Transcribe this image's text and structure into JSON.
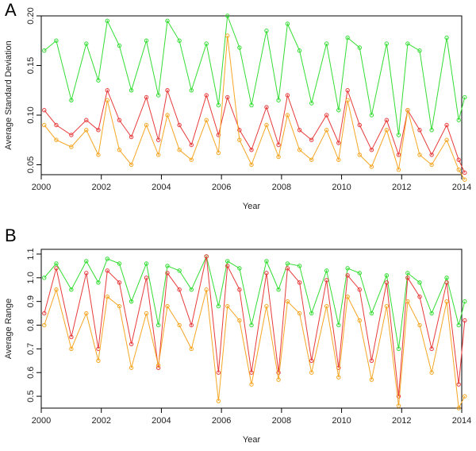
{
  "chart_data": [
    {
      "panel_label": "A",
      "type": "line",
      "xlabel": "Year",
      "ylabel": "Average Standard Deviation",
      "xlim": [
        2000,
        2014
      ],
      "ylim": [
        0.04,
        0.2
      ],
      "xticks": [
        "2000",
        "2002",
        "2004",
        "2006",
        "2008",
        "2010",
        "2012",
        "2014"
      ],
      "yticks": [
        "0.05",
        "0.10",
        "0.15",
        "0.20"
      ],
      "grid": false,
      "legend": "none",
      "x": [
        2000.1,
        2000.5,
        2001.0,
        2001.5,
        2001.9,
        2002.2,
        2002.6,
        2003.0,
        2003.5,
        2003.9,
        2004.2,
        2004.6,
        2005.0,
        2005.5,
        2005.9,
        2006.2,
        2006.6,
        2007.0,
        2007.5,
        2007.9,
        2008.2,
        2008.6,
        2009.0,
        2009.5,
        2009.9,
        2010.2,
        2010.6,
        2011.0,
        2011.5,
        2011.9,
        2012.2,
        2012.6,
        2013.0,
        2013.5,
        2013.9,
        2014.1
      ],
      "series": [
        {
          "color": "#33dd33",
          "values": [
            0.165,
            0.175,
            0.115,
            0.172,
            0.135,
            0.195,
            0.17,
            0.125,
            0.175,
            0.12,
            0.195,
            0.175,
            0.125,
            0.172,
            0.11,
            0.2,
            0.168,
            0.11,
            0.185,
            0.115,
            0.192,
            0.165,
            0.112,
            0.172,
            0.105,
            0.178,
            0.168,
            0.1,
            0.172,
            0.08,
            0.172,
            0.165,
            0.085,
            0.178,
            0.095,
            0.118
          ]
        },
        {
          "color": "#e83a3a",
          "values": [
            0.105,
            0.09,
            0.08,
            0.095,
            0.085,
            0.125,
            0.095,
            0.078,
            0.118,
            0.075,
            0.125,
            0.09,
            0.07,
            0.12,
            0.08,
            0.118,
            0.085,
            0.065,
            0.108,
            0.07,
            0.12,
            0.085,
            0.075,
            0.1,
            0.072,
            0.125,
            0.09,
            0.065,
            0.095,
            0.06,
            0.105,
            0.085,
            0.06,
            0.09,
            0.055,
            0.042
          ]
        },
        {
          "color": "#f5a623",
          "values": [
            0.09,
            0.075,
            0.068,
            0.085,
            0.06,
            0.115,
            0.065,
            0.05,
            0.09,
            0.06,
            0.1,
            0.065,
            0.055,
            0.095,
            0.062,
            0.18,
            0.075,
            0.05,
            0.09,
            0.058,
            0.1,
            0.065,
            0.055,
            0.085,
            0.055,
            0.115,
            0.06,
            0.048,
            0.085,
            0.045,
            0.105,
            0.06,
            0.05,
            0.075,
            0.045,
            0.035
          ]
        }
      ]
    },
    {
      "panel_label": "B",
      "type": "line",
      "xlabel": "Year",
      "ylabel": "Average Range",
      "xlim": [
        2000,
        2014
      ],
      "ylim": [
        0.45,
        1.12
      ],
      "xticks": [
        "2000",
        "2002",
        "2004",
        "2006",
        "2008",
        "2010",
        "2012",
        "2014"
      ],
      "yticks": [
        "0.5",
        "0.6",
        "0.7",
        "0.8",
        "0.9",
        "1.0",
        "1.1"
      ],
      "grid": false,
      "legend": "none",
      "x": [
        2000.1,
        2000.5,
        2001.0,
        2001.5,
        2001.9,
        2002.2,
        2002.6,
        2003.0,
        2003.5,
        2003.9,
        2004.2,
        2004.6,
        2005.0,
        2005.5,
        2005.9,
        2006.2,
        2006.6,
        2007.0,
        2007.5,
        2007.9,
        2008.2,
        2008.6,
        2009.0,
        2009.5,
        2009.9,
        2010.2,
        2010.6,
        2011.0,
        2011.5,
        2011.9,
        2012.2,
        2012.6,
        2013.0,
        2013.5,
        2013.9,
        2014.1
      ],
      "series": [
        {
          "color": "#33dd33",
          "values": [
            1.0,
            1.06,
            0.95,
            1.07,
            0.98,
            1.08,
            1.06,
            0.9,
            1.06,
            0.8,
            1.05,
            1.03,
            0.95,
            1.09,
            0.88,
            1.07,
            1.04,
            0.8,
            1.07,
            0.95,
            1.06,
            1.05,
            0.85,
            1.03,
            0.8,
            1.04,
            1.02,
            0.85,
            1.01,
            0.7,
            1.02,
            0.98,
            0.85,
            1.0,
            0.8,
            0.9
          ]
        },
        {
          "color": "#e83a3a",
          "values": [
            0.85,
            1.04,
            0.75,
            1.02,
            0.7,
            1.03,
            0.98,
            0.72,
            1.0,
            0.62,
            1.02,
            0.95,
            0.8,
            1.09,
            0.6,
            1.05,
            0.95,
            0.6,
            1.02,
            0.6,
            1.04,
            0.98,
            0.65,
            0.99,
            0.62,
            1.01,
            0.95,
            0.65,
            0.98,
            0.5,
            1.0,
            0.92,
            0.7,
            0.98,
            0.55,
            0.82
          ]
        },
        {
          "color": "#f5a623",
          "values": [
            0.8,
            0.95,
            0.7,
            0.85,
            0.65,
            0.92,
            0.88,
            0.62,
            0.85,
            0.63,
            0.88,
            0.8,
            0.7,
            0.95,
            0.48,
            0.88,
            0.82,
            0.55,
            0.88,
            0.57,
            0.9,
            0.85,
            0.6,
            0.88,
            0.58,
            0.92,
            0.82,
            0.57,
            0.88,
            0.46,
            0.9,
            0.8,
            0.6,
            0.9,
            0.45,
            0.5
          ]
        }
      ]
    }
  ]
}
